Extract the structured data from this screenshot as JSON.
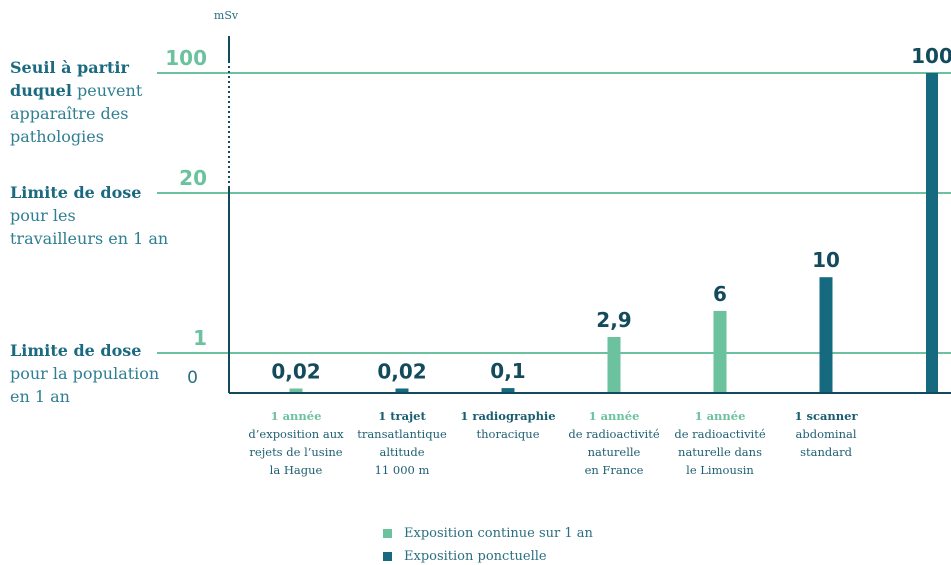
{
  "colors": {
    "continuous": "#6cc19e",
    "punctual": "#156a80",
    "axis": "#134b5c",
    "threshold_text": "#6cc19e",
    "value_text": "#134b5c"
  },
  "chart_data": {
    "type": "bar",
    "unit": "mSv",
    "scale": "piecewise (0, 1, 20, 100 reference lines)",
    "categories": [
      {
        "head": "1 année",
        "lines": [
          "d’exposition aux",
          "rejets de l’usine",
          "la Hague"
        ],
        "value": 0.02,
        "value_label": "0,02",
        "kind": "continuous"
      },
      {
        "head": "1 trajet",
        "lines": [
          "transatlantique",
          "altitude",
          "11 000 m"
        ],
        "value": 0.02,
        "value_label": "0,02",
        "kind": "punctual"
      },
      {
        "head": "1 radiographie",
        "lines": [
          "thoracique"
        ],
        "value": 0.1,
        "value_label": "0,1",
        "kind": "punctual"
      },
      {
        "head": "1 année",
        "lines": [
          "de radioactivité",
          "naturelle",
          "en France"
        ],
        "value": 2.9,
        "value_label": "2,9",
        "kind": "continuous"
      },
      {
        "head": "1 année",
        "lines": [
          "de radioactivité",
          "naturelle dans",
          "le Limousin"
        ],
        "value": 6,
        "value_label": "6",
        "kind": "continuous"
      },
      {
        "head": "1 scanner",
        "lines": [
          "abdominal",
          "standard"
        ],
        "value": 10,
        "value_label": "10",
        "kind": "punctual"
      },
      {
        "head": "",
        "lines": [],
        "value": 100,
        "value_label": "100",
        "kind": "punctual"
      }
    ],
    "thresholds": [
      {
        "value": 100,
        "label": "100",
        "title_bold": "Seuil à partir duquel",
        "title_rest": " peuvent apparaître des pathologies"
      },
      {
        "value": 20,
        "label": "20",
        "title_bold": "Limite de dose",
        "title_rest": " pour les travailleurs en 1 an"
      },
      {
        "value": 1,
        "label": "1",
        "title_bold": "Limite de dose",
        "title_rest": " pour la population en 1 an"
      }
    ],
    "zero_label": "0",
    "legend": [
      {
        "label": "Exposition continue sur 1 an",
        "kind": "continuous"
      },
      {
        "label": "Exposition ponctuelle",
        "kind": "punctual"
      }
    ]
  }
}
